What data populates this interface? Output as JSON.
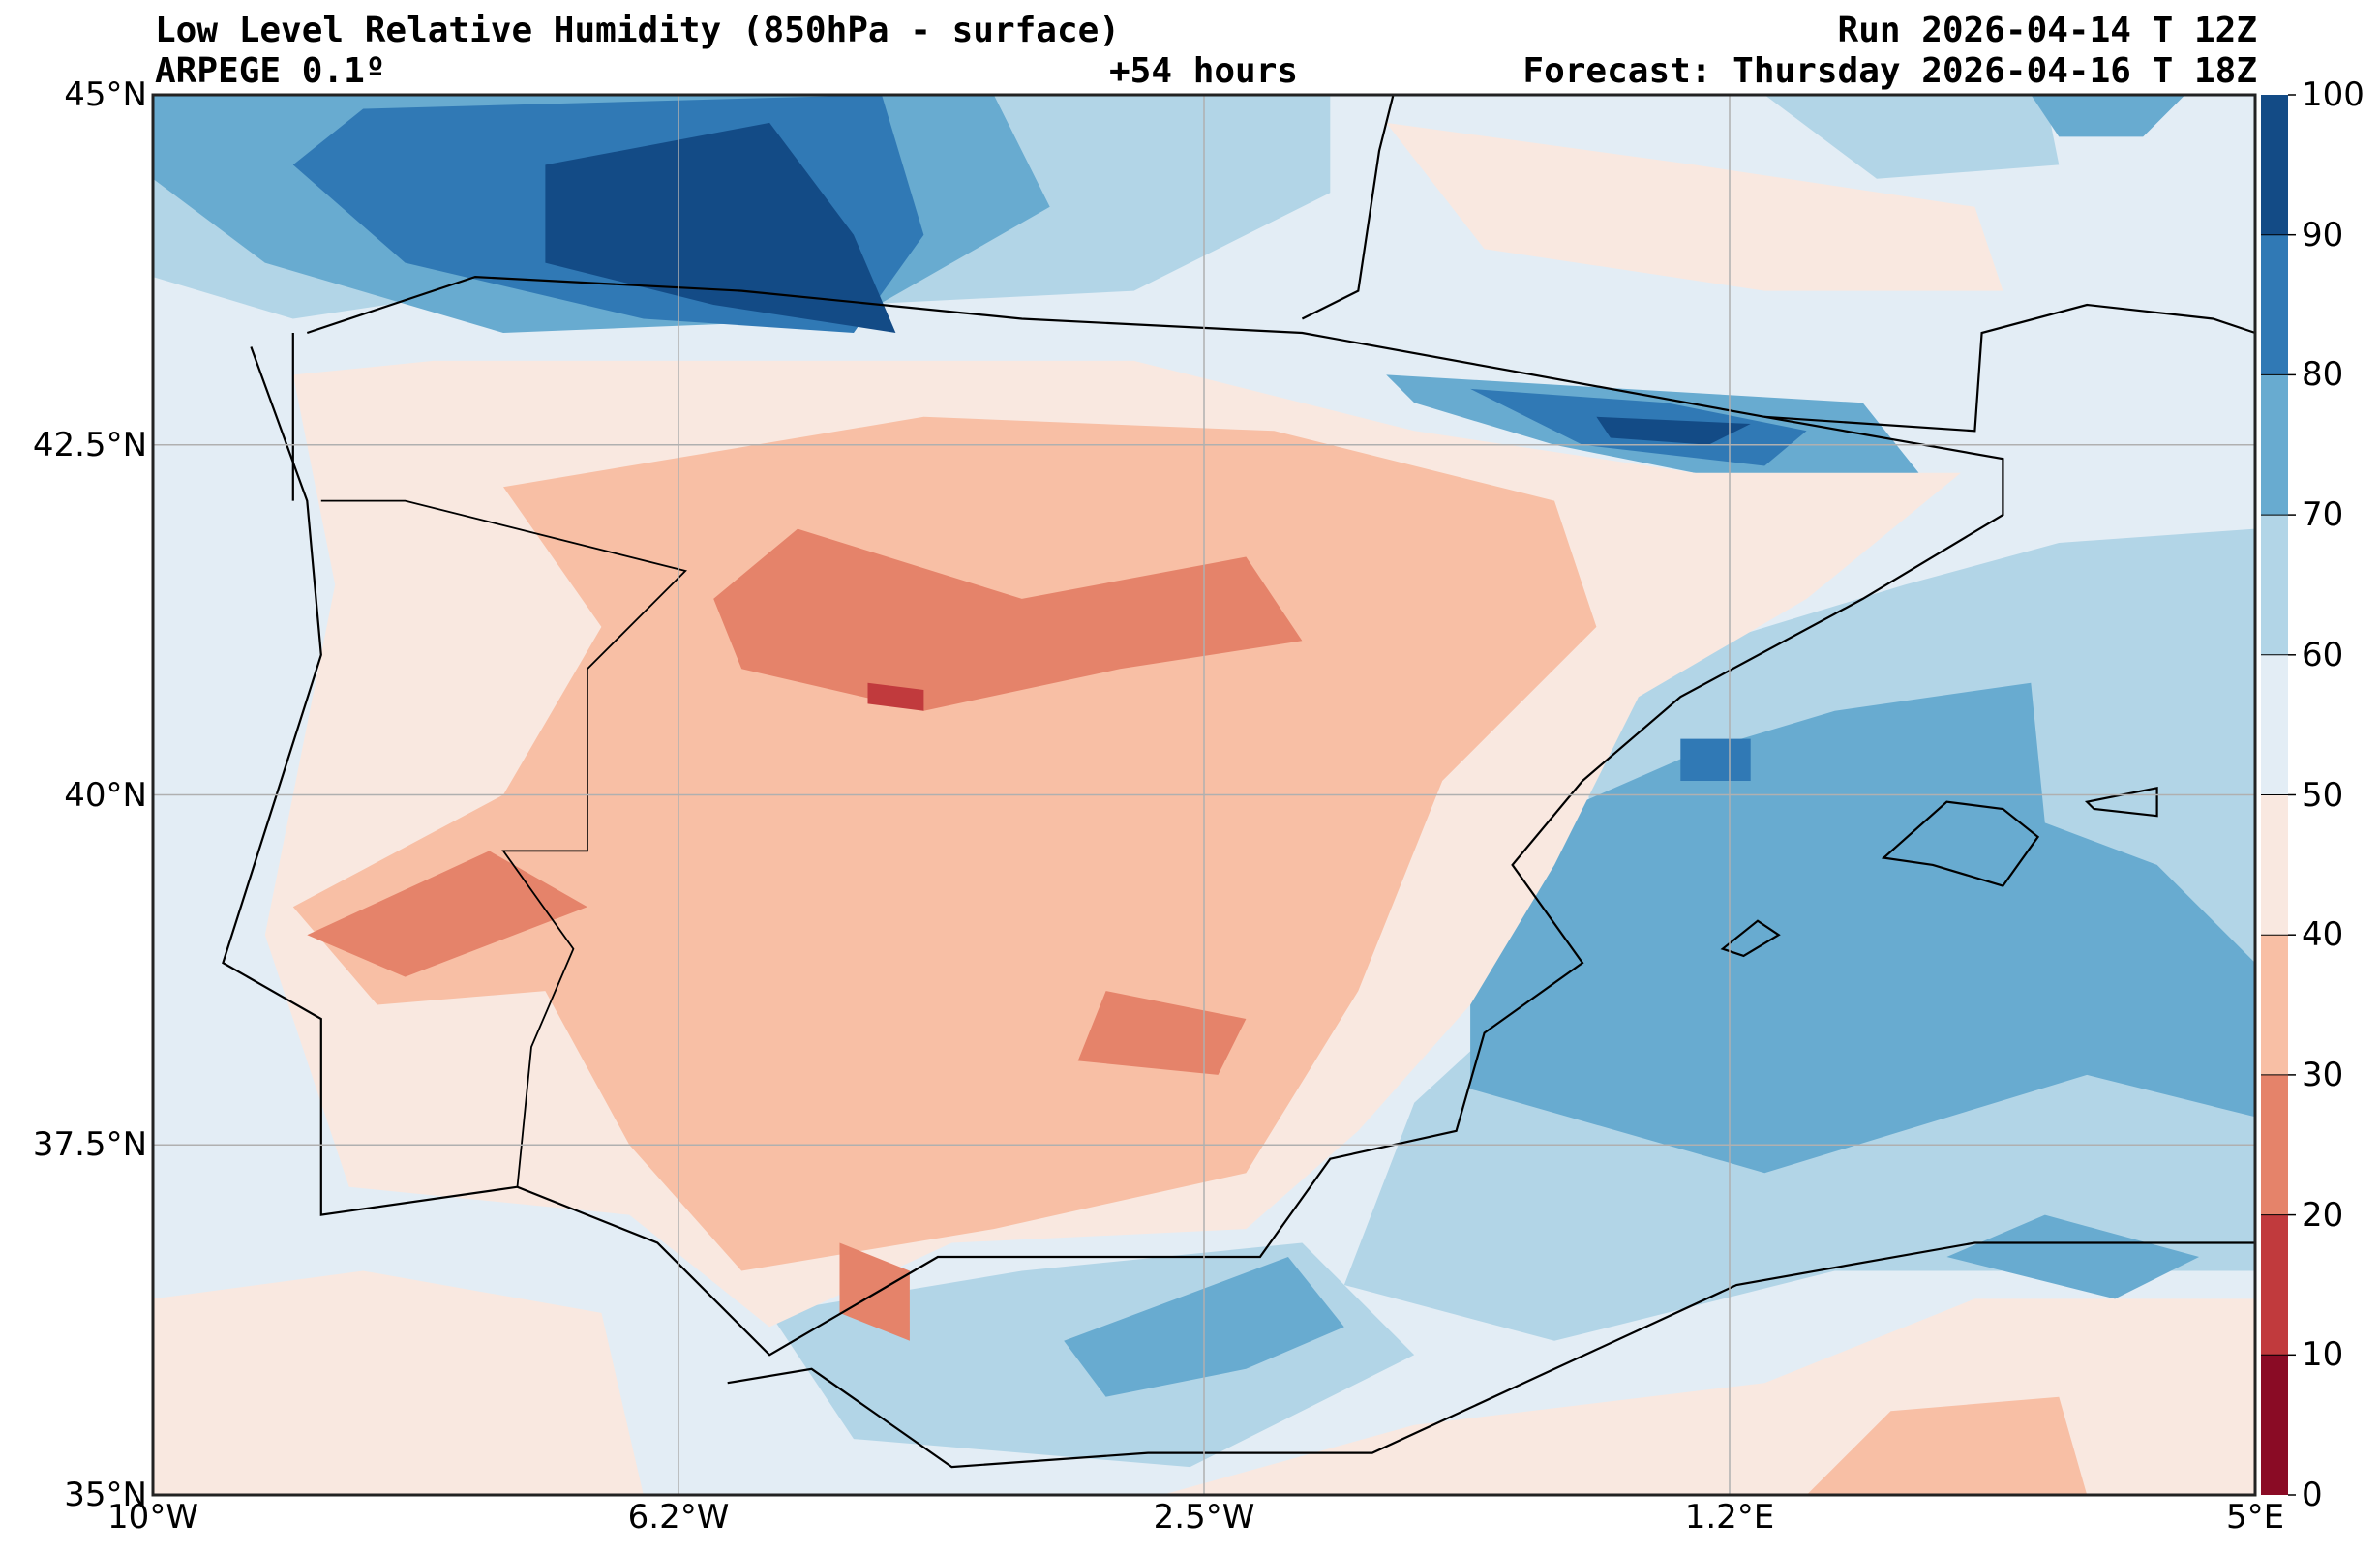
{
  "header": {
    "title": "Low Level Relative Humidity (850hPa - surface)",
    "model": "ARPEGE 0.1º",
    "lead_time": "+54 hours",
    "run": "Run 2026-04-14 T 12Z",
    "forecast": "Forecast: Thursday 2026-04-16 T 18Z"
  },
  "chart_data": {
    "type": "heatmap",
    "title": "Low Level Relative Humidity (850hPa - surface)",
    "variable": "Relative humidity (%)",
    "lon_range": [
      -10,
      5
    ],
    "lat_range": [
      35,
      45
    ],
    "lon_ticks": [
      {
        "value": -10,
        "label": "10°W"
      },
      {
        "value": -6.25,
        "label": "6.2°W"
      },
      {
        "value": -2.5,
        "label": "2.5°W"
      },
      {
        "value": 1.25,
        "label": "1.2°E"
      },
      {
        "value": 5,
        "label": "5°E"
      }
    ],
    "lat_ticks": [
      {
        "value": 35,
        "label": "35°N"
      },
      {
        "value": 37.5,
        "label": "37.5°N"
      },
      {
        "value": 40,
        "label": "40°N"
      },
      {
        "value": 42.5,
        "label": "42.5°N"
      },
      {
        "value": 45,
        "label": "45°N"
      }
    ],
    "grid": true,
    "colorbar": {
      "placement": "right",
      "levels": [
        0,
        10,
        20,
        30,
        40,
        50,
        60,
        70,
        80,
        90,
        100
      ],
      "labels": [
        "0",
        "10",
        "20",
        "30",
        "40",
        "50",
        "60",
        "70",
        "80",
        "90",
        "100"
      ],
      "colors": [
        "#8a0b25",
        "#c13a3d",
        "#e5836a",
        "#f8bfa5",
        "#f9e8e0",
        "#e3edf5",
        "#b2d5e7",
        "#68abd0",
        "#3079b5",
        "#134b86"
      ]
    }
  }
}
